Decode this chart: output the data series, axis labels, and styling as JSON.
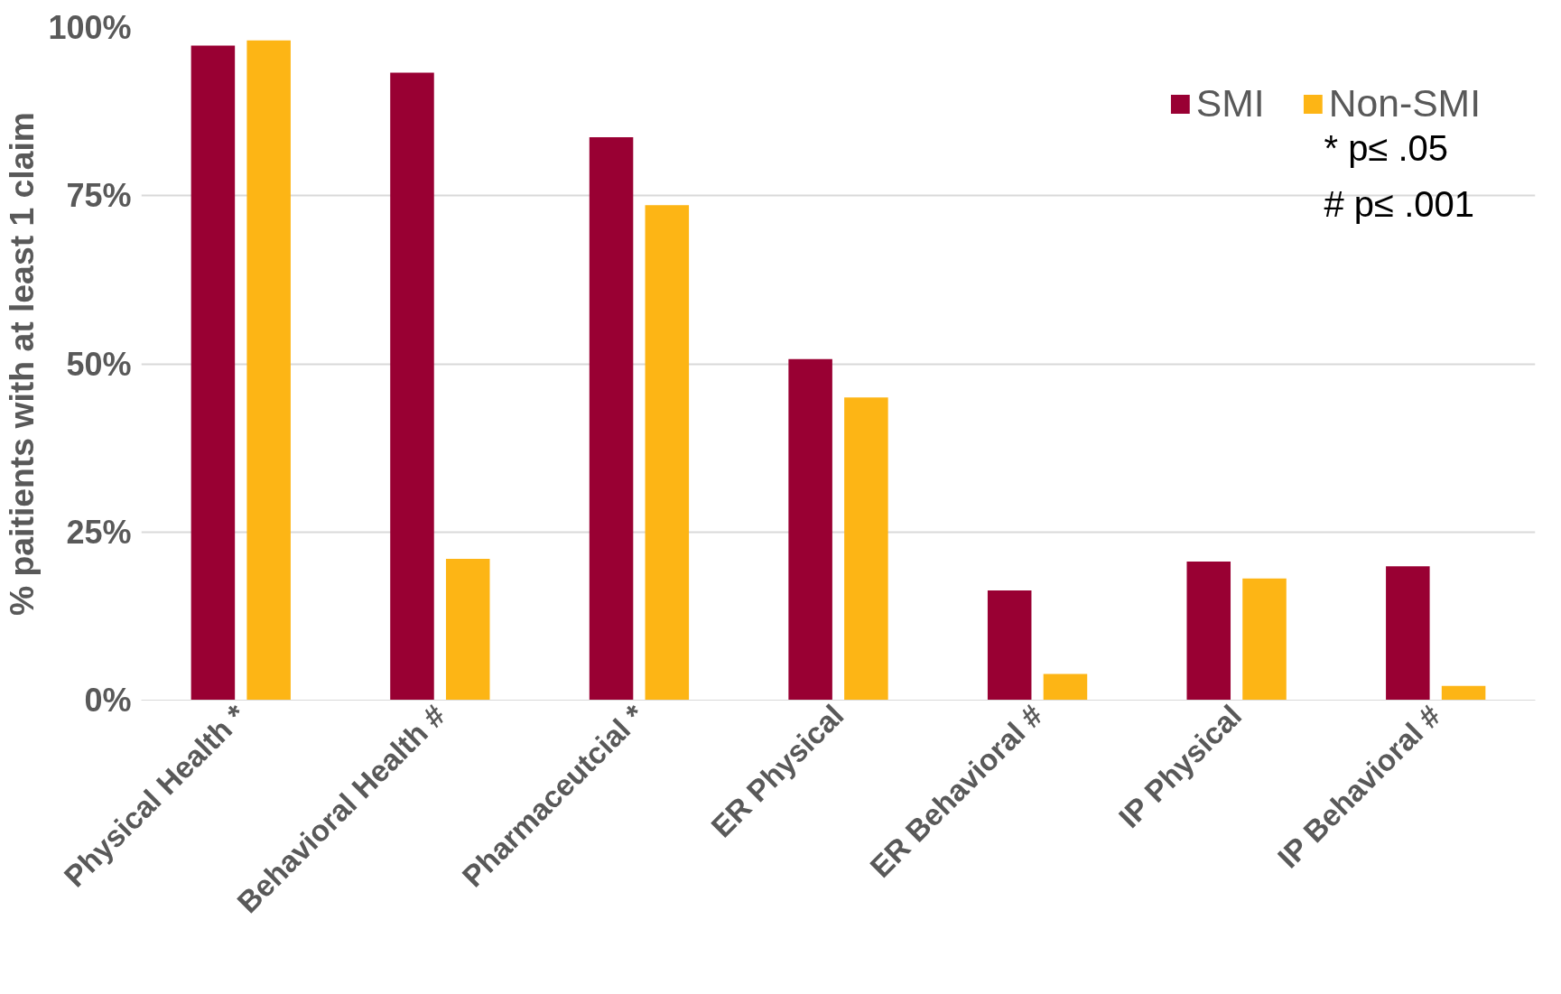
{
  "chart_data": {
    "type": "bar",
    "ylabel": "% paitients with at least 1 claim",
    "categories": [
      "Physical Health *",
      "Behavioral Health #",
      "Pharmaceutcial *",
      "ER Physical",
      "ER Behavioral #",
      "IP Physical",
      "IP Behavioral #"
    ],
    "series": [
      {
        "name": "SMI",
        "color": "#990033",
        "values": [
          97.3,
          93.3,
          83.7,
          50.7,
          16.3,
          20.6,
          19.9
        ]
      },
      {
        "name": "Non-SMI",
        "color": "#fdb515",
        "values": [
          98.1,
          21.0,
          73.6,
          45.0,
          3.9,
          18.1,
          2.1
        ]
      }
    ],
    "ylim": [
      0,
      100
    ],
    "yticks": [
      {
        "value": 0,
        "label": "0%"
      },
      {
        "value": 25,
        "label": "25%"
      },
      {
        "value": 50,
        "label": "50%"
      },
      {
        "value": 75,
        "label": "75%"
      },
      {
        "value": 100,
        "label": "100%"
      }
    ],
    "grid": "y",
    "legend": "top right",
    "annotations": [
      "* p≤ .05",
      "# p≤ .001"
    ]
  }
}
